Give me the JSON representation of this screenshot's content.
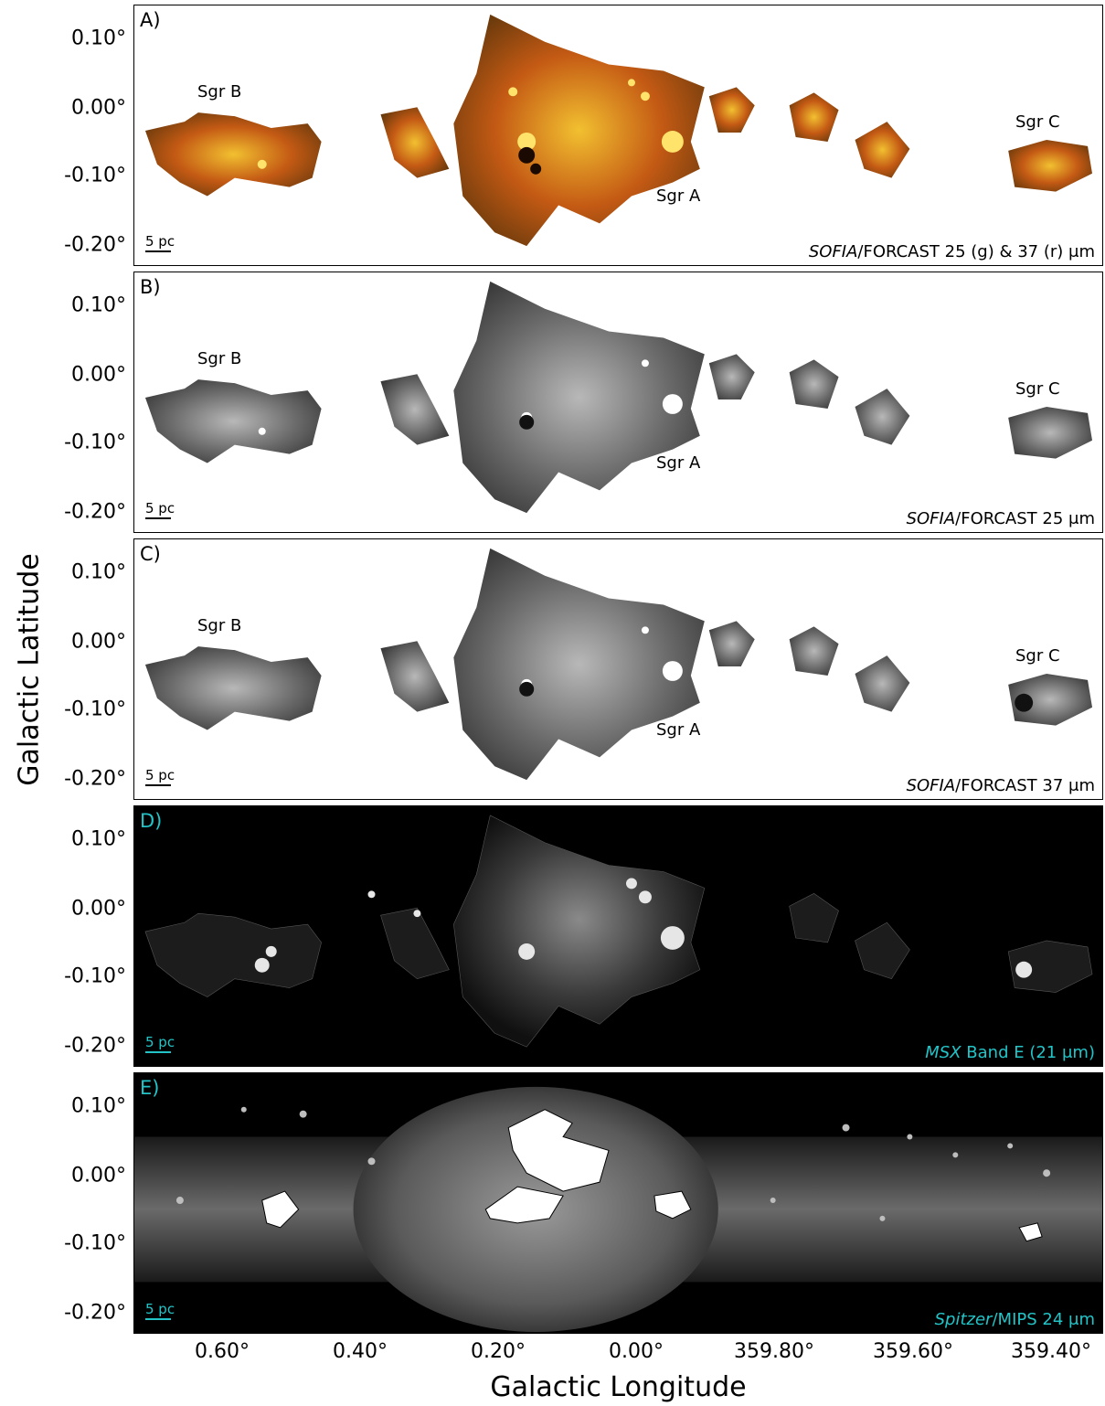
{
  "axes": {
    "ylabel": "Galactic Latitude",
    "xlabel": "Galactic Longitude",
    "yticks": [
      "0.10°",
      "0.00°",
      "-0.10°",
      "-0.20°"
    ],
    "xticks": [
      "0.60°",
      "0.40°",
      "0.20°",
      "0.00°",
      "359.80°",
      "359.60°",
      "359.40°"
    ]
  },
  "panels": [
    {
      "label": "A)",
      "source": "SOFIA/FORCAST 25 (g) & 37 (r) μm",
      "source_italic": "SOFIA",
      "source_rest": "/FORCAST 25 (g) & 37 (r) μm",
      "scale": "5 pc"
    },
    {
      "label": "B)",
      "source_italic": "SOFIA",
      "source_rest": "/FORCAST 25 μm",
      "scale": "5 pc"
    },
    {
      "label": "C)",
      "source_italic": "SOFIA",
      "source_rest": "/FORCAST 37 μm",
      "scale": "5 pc"
    },
    {
      "label": "D)",
      "source_italic": "MSX",
      "source_rest": " Band E (21 μm)",
      "scale": "5 pc"
    },
    {
      "label": "E)",
      "source_italic": "Spitzer",
      "source_rest": "/MIPS 24 μm",
      "scale": "5 pc"
    }
  ],
  "regions": {
    "sgr_b": "Sgr B",
    "sgr_a": "Sgr A",
    "sgr_c": "Sgr C"
  },
  "colors": {
    "panel_a_bg": "#ffffff",
    "dark_bg": "#000000",
    "accent_cyan": "#22c4c8",
    "orange": "#d9701a",
    "yellow": "#f0c020"
  }
}
